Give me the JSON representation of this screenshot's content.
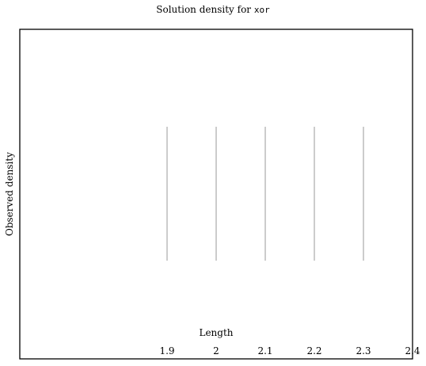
{
  "chart_data": {
    "type": "rug",
    "title_prefix": "Solution density for ",
    "title_code": "xor",
    "xlabel": "Length",
    "ylabel": "Observed density",
    "x_ticks": [
      "1.9",
      "2",
      "2.1",
      "2.2",
      "2.3",
      "2.4"
    ],
    "x_tick_values": [
      1.9,
      2.0,
      2.1,
      2.2,
      2.3,
      2.4
    ],
    "xlim": [
      1.6,
      2.4
    ],
    "values": [
      1.9,
      2.0,
      2.1,
      2.2,
      2.3
    ],
    "grid": false,
    "line_color": "#bbbbbb",
    "frame_color": "#000000"
  }
}
